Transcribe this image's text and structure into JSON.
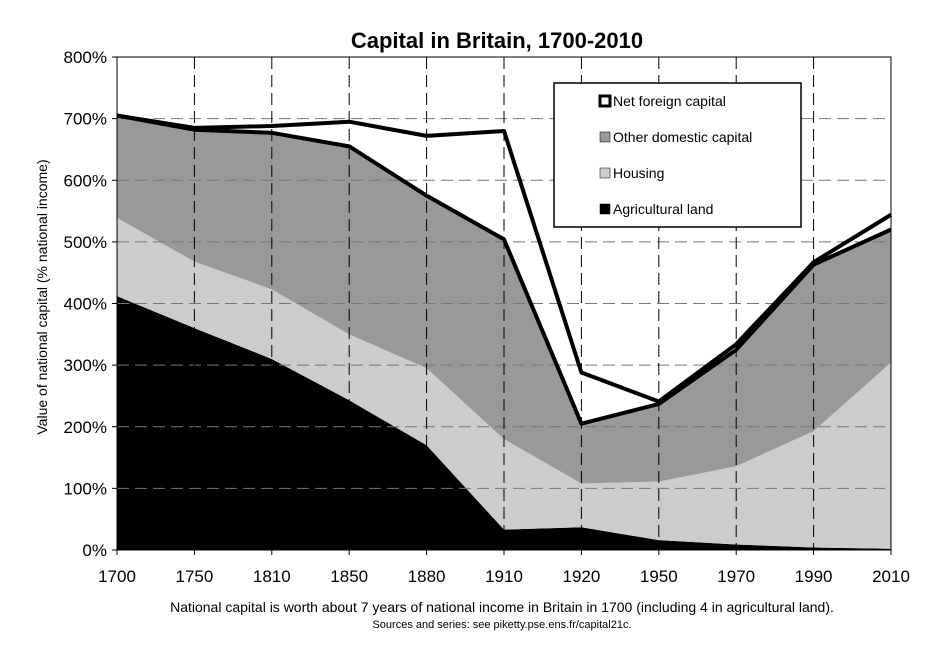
{
  "chart_data": {
    "type": "area",
    "title": "Capital in Britain, 1700-2010",
    "ylabel": "Value of national capital (% national income)",
    "xlabel": "",
    "categories": [
      "1700",
      "1750",
      "1810",
      "1850",
      "1880",
      "1910",
      "1920",
      "1950",
      "1970",
      "1990",
      "2010"
    ],
    "ylim": [
      0,
      800
    ],
    "y_ticks": [
      0,
      100,
      200,
      300,
      400,
      500,
      600,
      700,
      800
    ],
    "y_tick_labels": [
      "0%",
      "100%",
      "200%",
      "300%",
      "400%",
      "500%",
      "600%",
      "700%",
      "800%"
    ],
    "stacked": true,
    "grid": "dashed",
    "legend_position": "top-right",
    "series": [
      {
        "name": "Agricultural land",
        "color": "#000000",
        "values": [
          412,
          360,
          310,
          243,
          170,
          33,
          37,
          16,
          9,
          4,
          2
        ]
      },
      {
        "name": "Housing",
        "color": "#cccccc",
        "values": [
          127,
          108,
          113,
          107,
          125,
          147,
          71,
          95,
          127,
          189,
          302
        ]
      },
      {
        "name": "Other domestic capital",
        "color": "#999999",
        "values": [
          166,
          214,
          254,
          305,
          280,
          324,
          97,
          126,
          189,
          270,
          216
        ]
      },
      {
        "name": "Net foreign capital",
        "color": "#ffffff",
        "values": [
          0,
          3,
          11,
          40,
          97,
          176,
          83,
          4,
          9,
          4,
          24
        ]
      }
    ],
    "outline_total": [
      705,
      685,
      688,
      695,
      672,
      680,
      288,
      241,
      334,
      467,
      544
    ],
    "outline_domestic": [
      705,
      682,
      677,
      655,
      575,
      504,
      205,
      237,
      325,
      463,
      520
    ],
    "note": "National capital is worth about 7 years of national income in Britain in 1700 (including 4 in agricultural land).",
    "source": "Sources and series: see piketty.pse.ens.fr/capital21c."
  }
}
